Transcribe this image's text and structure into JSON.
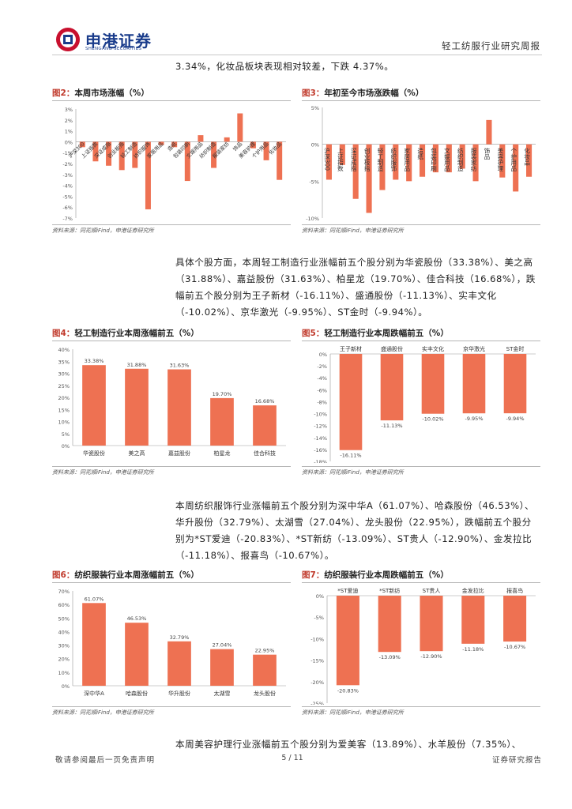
{
  "header": {
    "brand_cn": "申港证券",
    "brand_en": "SHENGANG SECURITIES",
    "report_type": "轻工纺服行业研究周报"
  },
  "paragraphs": {
    "p1": "3.34%，化妆品板块表现相对较差，下跌 4.37%。",
    "p2": "具体个股方面，本周轻工制造行业涨幅前五个股分别为华瓷股份（33.38%）、美之高（31.88%）、嘉益股份（31.63%）、柏星龙（19.70%）、佳合科技（16.68%），跌幅前五个股分别为王子新材（-16.11%）、盛通股份（-11.13%）、实丰文化（-10.02%）、京华激光（-9.95%）、ST金时（-9.94%）。",
    "p3": "本周纺织服饰行业涨幅前五个股分别为深中华A（61.07%）、哈森股份（46.53%）、华升股份（32.79%）、太湖雪（27.04%）、龙头股份（22.95%），跌幅前五个股分别为*ST爱迪（-20.83%）、*ST新纺（-13.09%）、ST贵人（-12.90%）、金发拉比（-11.18%）、报喜鸟（-10.67%）。",
    "p4": "本周美容护理行业涨幅前五个股分别为爱美客（13.89%）、水羊股份（7.35%）、"
  },
  "source_text": "资料来源：同花顺iFind，申港证券研究所",
  "figures": {
    "fig2": {
      "num": "图2：",
      "title": "本周市场涨幅（%）"
    },
    "fig3": {
      "num": "图3：",
      "title": "年初至今市场涨跌幅（%）"
    },
    "fig4": {
      "num": "图4：",
      "title": "轻工制造行业本周涨幅前五（%）"
    },
    "fig5": {
      "num": "图5：",
      "title": "轻工制造行业本周跌幅前五（%）"
    },
    "fig6": {
      "num": "图6：",
      "title": "纺织服装行业本周涨幅前五（%）"
    },
    "fig7": {
      "num": "图7：",
      "title": "纺织服装行业本周跌幅前五（%）"
    }
  },
  "chart_data": [
    {
      "id": "fig2",
      "type": "bar",
      "color": "#ee7152",
      "categories": [
        "沪深300",
        "上证指数",
        "深证成指",
        "创业板指",
        "轻工制造",
        "纺织服饰",
        "家居用品",
        "造纸",
        "包装印刷",
        "文娱用品",
        "纺织制造",
        "服装家纺",
        "饰品",
        "美容护理",
        "个护用品",
        "化妆品"
      ],
      "values": [
        -0.5,
        -1.8,
        -2.2,
        -2.6,
        -2.4,
        -6.2,
        -0.3,
        -0.5,
        -3.6,
        0.6,
        -2.4,
        0.4,
        2.6,
        -0.6,
        -1.7,
        -3.5
      ],
      "yticks": [
        "3%",
        "2%",
        "1%",
        "0%",
        "-1%",
        "-2%",
        "-3%",
        "-4%",
        "-5%",
        "-6%",
        "-7%"
      ],
      "ylim": [
        -7,
        3
      ]
    },
    {
      "id": "fig3",
      "type": "bar",
      "color": "#ee7152",
      "categories": [
        "沪深300",
        "上证指数",
        "深证成指",
        "创业板指",
        "轻工制造",
        "纺织服饰",
        "家居用品",
        "造纸",
        "包装印刷",
        "文娱用品",
        "纺织制造",
        "服装家纺",
        "饰品",
        "美容护理",
        "个护用品",
        "化妆品"
      ],
      "values": [
        -4.8,
        -2.8,
        -7.4,
        -9.3,
        -6.2,
        -4.8,
        -5.0,
        -4.4,
        -3.8,
        -3.8,
        -3.3,
        -5.0,
        3.3,
        -4.5,
        -6.4,
        -4.4
      ],
      "yticks": [
        "5%",
        "0%",
        "-5%",
        "-10%"
      ],
      "ylim": [
        -10,
        5
      ]
    },
    {
      "id": "fig4",
      "type": "bar",
      "color": "#ee7152",
      "categories": [
        "华瓷股份",
        "美之高",
        "嘉益股份",
        "柏星龙",
        "佳合科技"
      ],
      "values": [
        33.38,
        31.88,
        31.63,
        19.7,
        16.68
      ],
      "labels": [
        "33.38%",
        "31.88%",
        "31.63%",
        "19.70%",
        "16.68%"
      ],
      "yticks": [
        "40%",
        "35%",
        "30%",
        "25%",
        "20%",
        "15%",
        "10%",
        "5%",
        "0%"
      ],
      "ylim": [
        0,
        40
      ]
    },
    {
      "id": "fig5",
      "type": "bar",
      "color": "#ee7152",
      "categories": [
        "王子新材",
        "盛通股份",
        "实丰文化",
        "京华激光",
        "ST金时"
      ],
      "values": [
        -16.11,
        -11.13,
        -10.02,
        -9.95,
        -9.94
      ],
      "labels": [
        "-16.11%",
        "-11.13%",
        "-10.02%",
        "-9.95%",
        "-9.94%"
      ],
      "yticks": [
        "0%",
        "-2%",
        "-4%",
        "-6%",
        "-8%",
        "-10%",
        "-12%",
        "-14%",
        "-16%",
        "-18%"
      ],
      "ylim": [
        -18,
        0
      ]
    },
    {
      "id": "fig6",
      "type": "bar",
      "color": "#ee7152",
      "categories": [
        "深中华A",
        "哈森股份",
        "华升股份",
        "太湖雪",
        "龙头股份"
      ],
      "values": [
        61.07,
        46.53,
        32.79,
        27.04,
        22.95
      ],
      "labels": [
        "61.07%",
        "46.53%",
        "32.79%",
        "27.04%",
        "22.95%"
      ],
      "yticks": [
        "70%",
        "60%",
        "50%",
        "40%",
        "30%",
        "20%",
        "10%",
        "0%"
      ],
      "ylim": [
        0,
        70
      ]
    },
    {
      "id": "fig7",
      "type": "bar",
      "color": "#ee7152",
      "categories": [
        "*ST爱迪",
        "*ST新纺",
        "ST贵人",
        "金发拉比",
        "报喜鸟"
      ],
      "values": [
        -20.83,
        -13.09,
        -12.9,
        -11.18,
        -10.67
      ],
      "labels": [
        "-20.83%",
        "-13.09%",
        "-12.90%",
        "-11.18%",
        "-10.67%"
      ],
      "yticks": [
        "0%",
        "-5%",
        "-10%",
        "-15%",
        "-20%",
        "-25%"
      ],
      "ylim": [
        -25,
        0
      ]
    }
  ],
  "footer": {
    "disclaimer": "敬请参阅最后一页免责声明",
    "page": "5 / 11",
    "doc_type": "证券研究报告"
  }
}
